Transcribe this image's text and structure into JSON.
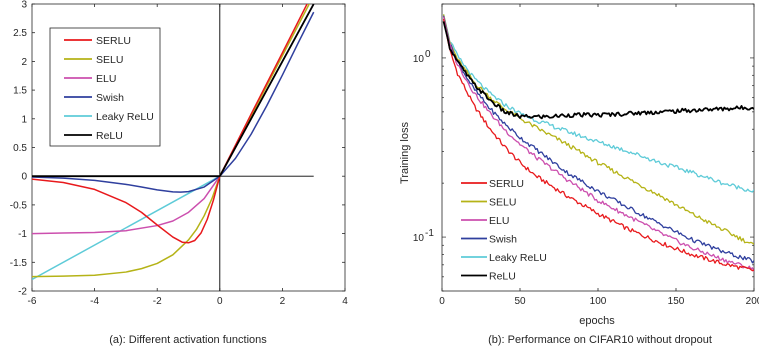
{
  "chart_data": [
    {
      "type": "line",
      "title": "",
      "xlabel": "",
      "ylabel": "",
      "caption": "(a): Different activation functions",
      "xlim": [
        -6,
        4
      ],
      "ylim": [
        -2,
        3
      ],
      "x_ticks": [
        "-6",
        "-4",
        "-2",
        "0",
        "2",
        "4"
      ],
      "y_ticks": [
        "-2",
        "-1.5",
        "-1",
        "-0.5",
        "0",
        "0.5",
        "1",
        "1.5",
        "2",
        "2.5",
        "3"
      ],
      "grid": false,
      "reference_lines": [
        "x=0",
        "y=0"
      ],
      "legend": {
        "placement": "top-left"
      },
      "series": [
        {
          "name": "SERLU",
          "color": "#e8191c",
          "x": [
            -6,
            -5,
            -4,
            -3,
            -2.5,
            -2,
            -1.5,
            -1.2,
            -1,
            -0.8,
            -0.6,
            -0.4,
            -0.2,
            0,
            1,
            2,
            3
          ],
          "y": [
            -0.05,
            -0.11,
            -0.23,
            -0.46,
            -0.63,
            -0.85,
            -1.06,
            -1.15,
            -1.16,
            -1.12,
            -0.99,
            -0.75,
            -0.41,
            0,
            1.08,
            2.15,
            3.23
          ]
        },
        {
          "name": "SELU",
          "color": "#b5b317",
          "x": [
            -6,
            -5,
            -4,
            -3,
            -2.5,
            -2,
            -1.5,
            -1,
            -0.75,
            -0.5,
            -0.25,
            0,
            1,
            2,
            3
          ],
          "y": [
            -1.75,
            -1.74,
            -1.726,
            -1.67,
            -1.61,
            -1.52,
            -1.37,
            -1.11,
            -0.93,
            -0.69,
            -0.39,
            0,
            1.05,
            2.1,
            3.15
          ]
        },
        {
          "name": "ELU",
          "color": "#cc4fae",
          "x": [
            -6,
            -5,
            -4,
            -3,
            -2,
            -1.5,
            -1,
            -0.5,
            0,
            1,
            2,
            3
          ],
          "y": [
            -1,
            -0.99,
            -0.98,
            -0.95,
            -0.86,
            -0.78,
            -0.63,
            -0.39,
            0,
            1,
            2,
            3
          ]
        },
        {
          "name": "Swish",
          "color": "#2f3f9e",
          "x": [
            -6,
            -5,
            -4,
            -3,
            -2.5,
            -2,
            -1.5,
            -1.25,
            -1,
            -0.5,
            0,
            0.5,
            1,
            1.5,
            2,
            2.5,
            3
          ],
          "y": [
            -0.015,
            -0.033,
            -0.072,
            -0.142,
            -0.189,
            -0.238,
            -0.274,
            -0.278,
            -0.269,
            -0.189,
            0,
            0.311,
            0.731,
            1.227,
            1.762,
            2.317,
            2.858
          ]
        },
        {
          "name": "Leaky ReLU",
          "color": "#5ecbd8",
          "x": [
            -6,
            0,
            1,
            2,
            3
          ],
          "y": [
            -1.8,
            0,
            1,
            2,
            3
          ]
        },
        {
          "name": "ReLU",
          "color": "#000000",
          "x": [
            -6,
            0,
            1,
            2,
            3
          ],
          "y": [
            0,
            0,
            1,
            2,
            3
          ]
        }
      ]
    },
    {
      "type": "line",
      "title": "",
      "xlabel": "epochs",
      "ylabel": "Training loss",
      "caption": "(b): Performance on CIFAR10 without dropout",
      "xlim": [
        0,
        200
      ],
      "ylim": [
        0.05,
        2
      ],
      "yscale": "log",
      "x_ticks": [
        "0",
        "50",
        "100",
        "150",
        "200"
      ],
      "y_ticks": [
        {
          "value": 1,
          "base": "10",
          "exp": "0"
        },
        {
          "value": 0.1,
          "base": "10",
          "exp": "-1"
        }
      ],
      "grid": false,
      "legend": {
        "placement": "bottom-left"
      },
      "series": [
        {
          "name": "SERLU",
          "color": "#e8191c",
          "x": [
            1,
            5,
            10,
            20,
            30,
            40,
            50,
            60,
            80,
            100,
            120,
            140,
            160,
            180,
            200
          ],
          "y": [
            1.65,
            1.1,
            0.82,
            0.55,
            0.41,
            0.32,
            0.26,
            0.22,
            0.17,
            0.135,
            0.11,
            0.093,
            0.08,
            0.071,
            0.065
          ]
        },
        {
          "name": "SELU",
          "color": "#b5b317",
          "x": [
            1,
            5,
            10,
            20,
            30,
            40,
            50,
            60,
            80,
            100,
            120,
            140,
            160,
            180,
            200
          ],
          "y": [
            1.75,
            1.22,
            0.98,
            0.74,
            0.61,
            0.52,
            0.46,
            0.41,
            0.33,
            0.26,
            0.21,
            0.17,
            0.135,
            0.11,
            0.09
          ]
        },
        {
          "name": "ELU",
          "color": "#cc4fae",
          "x": [
            1,
            5,
            10,
            20,
            30,
            40,
            50,
            60,
            80,
            100,
            120,
            140,
            160,
            180,
            200
          ],
          "y": [
            1.7,
            1.18,
            0.92,
            0.65,
            0.5,
            0.4,
            0.33,
            0.28,
            0.21,
            0.16,
            0.13,
            0.105,
            0.087,
            0.075,
            0.066
          ]
        },
        {
          "name": "Swish",
          "color": "#2f3f9e",
          "x": [
            1,
            5,
            10,
            20,
            30,
            40,
            50,
            60,
            80,
            100,
            120,
            140,
            160,
            180,
            200
          ],
          "y": [
            1.72,
            1.2,
            0.95,
            0.68,
            0.53,
            0.43,
            0.36,
            0.31,
            0.23,
            0.18,
            0.145,
            0.118,
            0.097,
            0.083,
            0.073
          ]
        },
        {
          "name": "Leaky ReLU",
          "color": "#5ecbd8",
          "x": [
            1,
            5,
            10,
            20,
            30,
            40,
            50,
            60,
            80,
            100,
            120,
            140,
            160,
            180,
            200
          ],
          "y": [
            1.75,
            1.25,
            1.02,
            0.78,
            0.64,
            0.55,
            0.49,
            0.45,
            0.39,
            0.34,
            0.3,
            0.26,
            0.23,
            0.2,
            0.18
          ]
        },
        {
          "name": "ReLU",
          "color": "#000000",
          "x": [
            1,
            5,
            10,
            20,
            30,
            40,
            50,
            60,
            70,
            80,
            100,
            120,
            140,
            160,
            180,
            200
          ],
          "y": [
            1.6,
            1.15,
            0.95,
            0.72,
            0.59,
            0.5,
            0.47,
            0.47,
            0.47,
            0.48,
            0.48,
            0.49,
            0.5,
            0.51,
            0.52,
            0.53
          ]
        }
      ]
    }
  ]
}
